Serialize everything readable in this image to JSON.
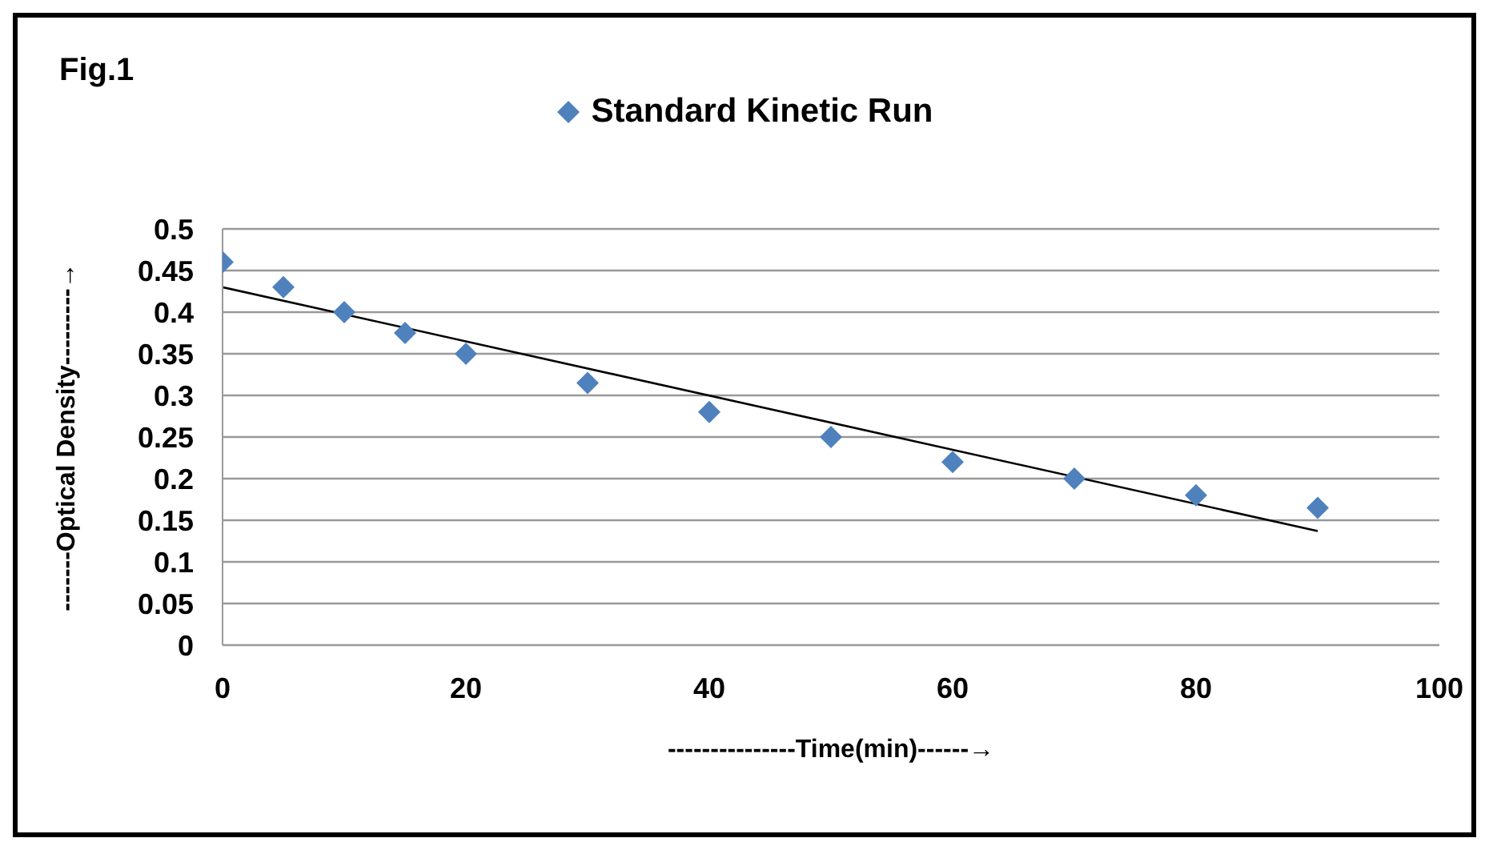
{
  "chart_data": {
    "type": "scatter",
    "title": "Fig.1",
    "xlabel": "---------------Time(min)------→",
    "ylabel": "-------Optical Density---------→",
    "x": [
      0,
      5,
      10,
      15,
      20,
      30,
      40,
      50,
      60,
      70,
      80,
      90
    ],
    "series": [
      {
        "name": "Standard Kinetic Run",
        "color": "#4f81bd",
        "marker": "diamond",
        "values": [
          0.46,
          0.43,
          0.4,
          0.375,
          0.35,
          0.315,
          0.28,
          0.25,
          0.22,
          0.2,
          0.18,
          0.165
        ]
      },
      {
        "type": "line",
        "color": "#000000",
        "marker": "none",
        "x": [
          0,
          90
        ],
        "values": [
          0.43,
          0.137
        ]
      }
    ],
    "xlim": [
      0,
      100
    ],
    "xticks": [
      0,
      20,
      40,
      60,
      80,
      100
    ],
    "ylim": [
      0,
      0.5
    ],
    "yticks": [
      0,
      0.05,
      0.1,
      0.15,
      0.2,
      0.25,
      0.3,
      0.35,
      0.4,
      0.45,
      0.5
    ],
    "grid": "y",
    "legend": "top",
    "line_style": "solid"
  }
}
